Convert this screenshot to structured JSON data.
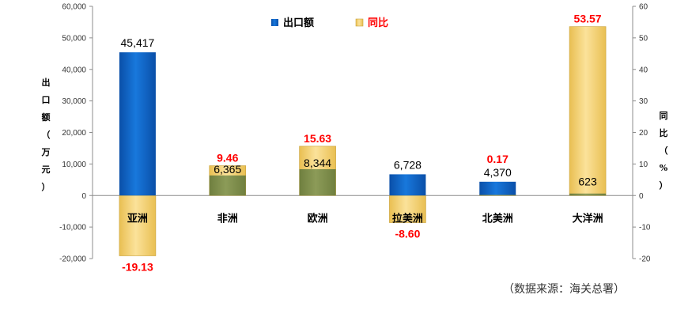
{
  "chart_data": {
    "type": "bar",
    "categories": [
      "亚洲",
      "非洲",
      "欧洲",
      "拉美洲",
      "北美洲",
      "大洋洲"
    ],
    "series": [
      {
        "name": "出口额",
        "values": [
          45417,
          6365,
          8344,
          6728,
          4370,
          623
        ],
        "labels": [
          "45,417",
          "6,365",
          "8,344",
          "6,728",
          "4,370",
          "623"
        ],
        "axis": "left",
        "color": "#0a62c4"
      },
      {
        "name": "同比",
        "values": [
          -19.13,
          9.46,
          15.63,
          -8.6,
          0.17,
          53.57
        ],
        "labels": [
          "-19.13",
          "9.46",
          "15.63",
          "-8.60",
          "0.17",
          "53.57"
        ],
        "axis": "right",
        "color": "#f5d06a"
      }
    ],
    "ylabel_left": "出口额（万元）",
    "ylabel_right": "同比（%）",
    "ylim_left": [
      -20000,
      60000
    ],
    "ylim_right": [
      -20,
      60
    ],
    "yticks_left": [
      "60,000",
      "50,000",
      "40,000",
      "30,000",
      "20,000",
      "10,000",
      "0",
      "-10,000",
      "-20,000"
    ],
    "yticks_right": [
      "60",
      "50",
      "40",
      "30",
      "20",
      "10",
      "0",
      "-10",
      "-20"
    ],
    "legend_position": "top-center",
    "grid": false,
    "overlap_color": "#7f8f4e",
    "label_color_yoy": "#ff0000",
    "source": "（数据来源：海关总署）"
  }
}
